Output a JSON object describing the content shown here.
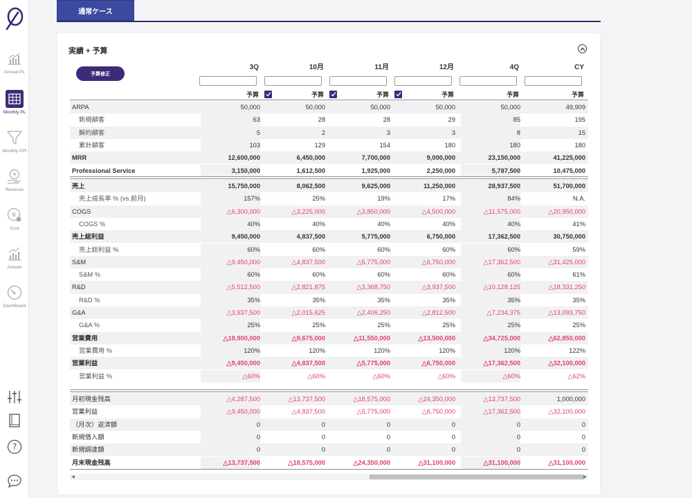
{
  "tabs": [
    {
      "label": "通常ケース"
    }
  ],
  "sidebar": {
    "items": [
      {
        "label": "Annual PL"
      },
      {
        "label": "Monthly PL"
      },
      {
        "label": "Monthly KPI"
      },
      {
        "label": "Revenue"
      },
      {
        "label": "Cost"
      },
      {
        "label": "Actuals"
      },
      {
        "label": "DashBoard"
      }
    ]
  },
  "card": {
    "title": "実績 + 予算",
    "budget_button": "予算修正"
  },
  "columns": [
    {
      "name": "3Q",
      "sub": "予算",
      "checkbox": false
    },
    {
      "name": "10月",
      "sub": "予算",
      "checkbox": true
    },
    {
      "name": "11月",
      "sub": "予算",
      "checkbox": true
    },
    {
      "name": "12月",
      "sub": "予算",
      "checkbox": true
    },
    {
      "name": "4Q",
      "sub": "予算",
      "checkbox": false
    },
    {
      "name": "CY",
      "sub": "予算",
      "checkbox": false
    }
  ],
  "sections": [
    [
      {
        "label": "ARPA",
        "indent": false,
        "bold": false,
        "values": [
          "50,000",
          "50,000",
          "50,000",
          "50,000",
          "50,000",
          "49,909"
        ]
      },
      {
        "label": "新規顧客",
        "indent": true,
        "bold": false,
        "values": [
          "63",
          "28",
          "28",
          "29",
          "85",
          "195"
        ]
      },
      {
        "label": "解約顧客",
        "indent": true,
        "bold": false,
        "values": [
          "5",
          "2",
          "3",
          "3",
          "8",
          "15"
        ]
      },
      {
        "label": "累計顧客",
        "indent": true,
        "bold": false,
        "values": [
          "103",
          "129",
          "154",
          "180",
          "180",
          "180"
        ]
      },
      {
        "label": "MRR",
        "indent": false,
        "bold": true,
        "values": [
          "12,600,000",
          "6,450,000",
          "7,700,000",
          "9,000,000",
          "23,150,000",
          "41,225,000"
        ]
      },
      {
        "label": "Professional Service",
        "indent": false,
        "bold": true,
        "values": [
          "3,150,000",
          "1,612,500",
          "1,925,000",
          "2,250,000",
          "5,787,500",
          "10,475,000"
        ]
      }
    ],
    [
      {
        "label": "売上",
        "indent": false,
        "bold": true,
        "values": [
          "15,750,000",
          "8,062,500",
          "9,625,000",
          "11,250,000",
          "28,937,500",
          "51,700,000"
        ]
      },
      {
        "label": "売上成長率 % (vs.前月)",
        "indent": true,
        "bold": false,
        "values": [
          "157%",
          "25%",
          "19%",
          "17%",
          "84%",
          "N.A."
        ]
      },
      {
        "label": "COGS",
        "indent": false,
        "bold": false,
        "values": [
          "△6,300,000",
          "△3,225,000",
          "△3,850,000",
          "△4,500,000",
          "△11,575,000",
          "△20,950,000"
        ]
      },
      {
        "label": "COGS %",
        "indent": true,
        "bold": false,
        "values": [
          "40%",
          "40%",
          "40%",
          "40%",
          "40%",
          "41%"
        ]
      },
      {
        "label": "売上総利益",
        "indent": false,
        "bold": true,
        "values": [
          "9,450,000",
          "4,837,500",
          "5,775,000",
          "6,750,000",
          "17,362,500",
          "30,750,000"
        ]
      },
      {
        "label": "売上総利益 %",
        "indent": true,
        "bold": false,
        "values": [
          "60%",
          "60%",
          "60%",
          "60%",
          "60%",
          "59%"
        ]
      },
      {
        "label": "S&M",
        "indent": false,
        "bold": false,
        "values": [
          "△9,450,000",
          "△4,837,500",
          "△5,775,000",
          "△6,750,000",
          "△17,362,500",
          "△31,425,000"
        ]
      },
      {
        "label": "S&M %",
        "indent": true,
        "bold": false,
        "values": [
          "60%",
          "60%",
          "60%",
          "60%",
          "60%",
          "61%"
        ]
      },
      {
        "label": "R&D",
        "indent": false,
        "bold": false,
        "values": [
          "△5,512,500",
          "△2,821,875",
          "△3,368,750",
          "△3,937,500",
          "△10,128,125",
          "△18,331,250"
        ]
      },
      {
        "label": "R&D %",
        "indent": true,
        "bold": false,
        "values": [
          "35%",
          "35%",
          "35%",
          "35%",
          "35%",
          "35%"
        ]
      },
      {
        "label": "G&A",
        "indent": false,
        "bold": false,
        "values": [
          "△3,937,500",
          "△2,015,625",
          "△2,406,250",
          "△2,812,500",
          "△7,234,375",
          "△13,093,750"
        ]
      },
      {
        "label": "G&A %",
        "indent": true,
        "bold": false,
        "values": [
          "25%",
          "25%",
          "25%",
          "25%",
          "25%",
          "25%"
        ]
      },
      {
        "label": "営業費用",
        "indent": false,
        "bold": true,
        "values": [
          "△18,900,000",
          "△9,675,000",
          "△11,550,000",
          "△13,500,000",
          "△34,725,000",
          "△62,850,000"
        ]
      },
      {
        "label": "営業費用 %",
        "indent": true,
        "bold": false,
        "values": [
          "120%",
          "120%",
          "120%",
          "120%",
          "120%",
          "122%"
        ]
      },
      {
        "label": "営業利益",
        "indent": false,
        "bold": true,
        "values": [
          "△9,450,000",
          "△4,837,500",
          "△5,775,000",
          "△6,750,000",
          "△17,362,500",
          "△32,100,000"
        ]
      },
      {
        "label": "営業利益 %",
        "indent": true,
        "bold": false,
        "values": [
          "△60%",
          "△60%",
          "△60%",
          "△60%",
          "△60%",
          "△62%"
        ]
      }
    ],
    [
      {
        "label": "月初現金残高",
        "indent": false,
        "bold": false,
        "values": [
          "△4,287,500",
          "△13,737,500",
          "△18,575,000",
          "△24,350,000",
          "△13,737,500",
          "1,000,000"
        ]
      },
      {
        "label": "営業利益",
        "indent": false,
        "bold": false,
        "values": [
          "△9,450,000",
          "△4,837,500",
          "△5,775,000",
          "△6,750,000",
          "△17,362,500",
          "△32,100,000"
        ]
      },
      {
        "label": "（月次）返済額",
        "indent": false,
        "bold": false,
        "values": [
          "0",
          "0",
          "0",
          "0",
          "0",
          "0"
        ]
      },
      {
        "label": "新規借入額",
        "indent": false,
        "bold": false,
        "values": [
          "0",
          "0",
          "0",
          "0",
          "0",
          "0"
        ]
      },
      {
        "label": "新規調達額",
        "indent": false,
        "bold": false,
        "values": [
          "0",
          "0",
          "0",
          "0",
          "0",
          "0"
        ]
      },
      {
        "label": "月末現金残高",
        "indent": false,
        "bold": true,
        "values": [
          "△13,737,500",
          "△18,575,000",
          "△24,350,000",
          "△31,100,000",
          "△31,100,000",
          "△31,100,000"
        ]
      }
    ]
  ]
}
